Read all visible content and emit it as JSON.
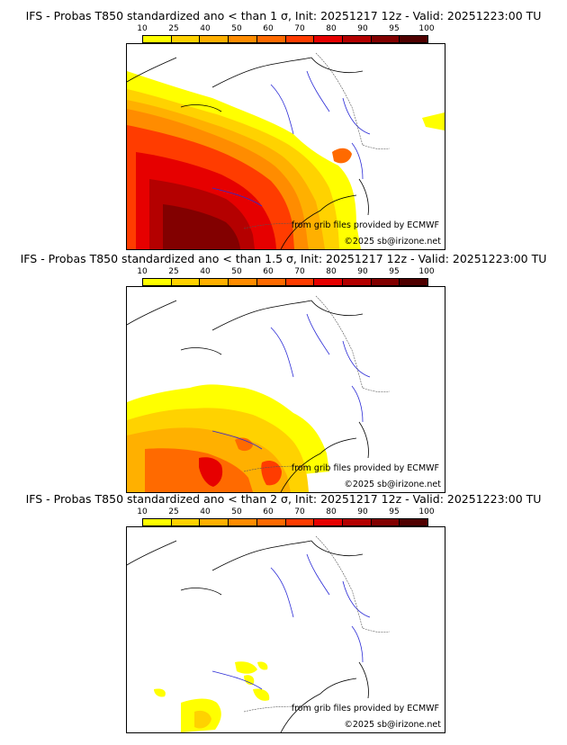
{
  "legend": {
    "ticks": [
      "10",
      "25",
      "40",
      "50",
      "60",
      "70",
      "80",
      "90",
      "95",
      "100"
    ],
    "colors": [
      "#ffff00",
      "#ffd200",
      "#ffb000",
      "#ff8c00",
      "#ff6a00",
      "#ff3c00",
      "#e60000",
      "#b40000",
      "#820000",
      "#500000"
    ]
  },
  "panels": [
    {
      "title": "IFS - Probas T850  standardized ano < than 1 σ, Init: 20251217 12z - Valid: 20251223:00 TU",
      "source_credit": "from grib files provided by ECMWF",
      "copyright": "©2025 sb@irizone.net"
    },
    {
      "title": "IFS - Probas T850  standardized ano < than 1.5 σ, Init: 20251217 12z - Valid: 20251223:00 TU",
      "source_credit": "from grib files provided by ECMWF",
      "copyright": "©2025 sb@irizone.net"
    },
    {
      "title": "IFS - Probas T850  standardized ano < than 2 σ, Init: 20251217 12z - Valid: 20251223:00 TU",
      "source_credit": "from grib files provided by ECMWF",
      "copyright": "©2025 sb@irizone.net"
    }
  ]
}
